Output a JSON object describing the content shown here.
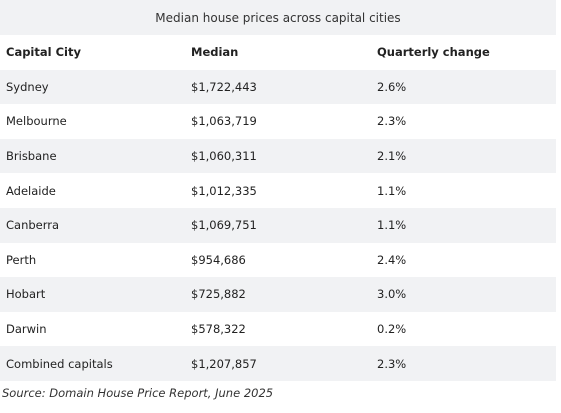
{
  "caption": "Median house prices across capital cities",
  "headers": [
    "Capital City",
    "Median",
    "Quarterly change"
  ],
  "rows": [
    [
      "Sydney",
      "$1,722,443",
      "2.6%"
    ],
    [
      "Melbourne",
      "$1,063,719",
      "2.3%"
    ],
    [
      "Brisbane",
      "$1,060,311",
      "2.1%"
    ],
    [
      "Adelaide",
      "$1,012,335",
      "1.1%"
    ],
    [
      "Canberra",
      "$1,069,751",
      "1.1%"
    ],
    [
      "Perth",
      "$954,686",
      "2.4%"
    ],
    [
      "Hobart",
      "$725,882",
      "3.0%"
    ],
    [
      "Darwin",
      "$578,322",
      "0.2%"
    ],
    [
      "Combined capitals",
      "$1,207,857",
      "2.3%"
    ]
  ],
  "source": "Source: Domain House Price Report, June 2025"
}
